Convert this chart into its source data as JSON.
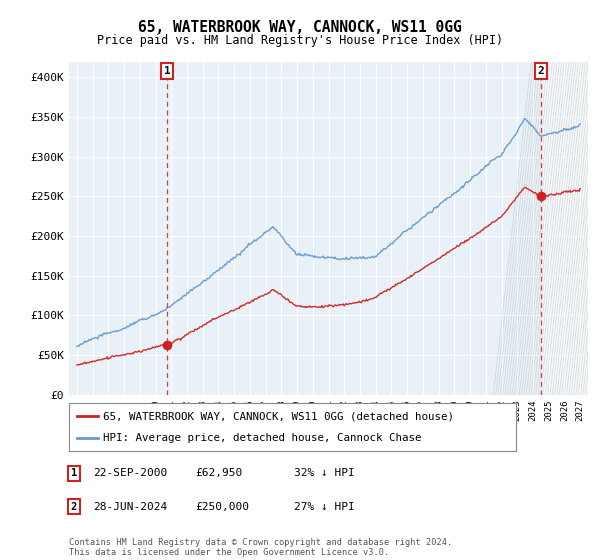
{
  "title": "65, WATERBROOK WAY, CANNOCK, WS11 0GG",
  "subtitle": "Price paid vs. HM Land Registry's House Price Index (HPI)",
  "ylim": [
    0,
    420000
  ],
  "yticks": [
    0,
    50000,
    100000,
    150000,
    200000,
    250000,
    300000,
    350000,
    400000
  ],
  "ytick_labels": [
    "£0",
    "£50K",
    "£100K",
    "£150K",
    "£200K",
    "£250K",
    "£300K",
    "£350K",
    "£400K"
  ],
  "background_color": "#ffffff",
  "plot_bg_color": "#e8f0f8",
  "grid_color": "#ffffff",
  "hpi_color": "#6699cc",
  "price_color": "#cc2222",
  "vline_color": "#cc2222",
  "sale1_date": 2000.73,
  "sale1_price": 62950,
  "sale1_label": "1",
  "sale2_date": 2024.49,
  "sale2_price": 250000,
  "sale2_label": "2",
  "legend_price_label": "65, WATERBROOK WAY, CANNOCK, WS11 0GG (detached house)",
  "legend_hpi_label": "HPI: Average price, detached house, Cannock Chase",
  "ann1_date": "22-SEP-2000",
  "ann1_price": "£62,950",
  "ann1_pct": "32% ↓ HPI",
  "ann2_date": "28-JUN-2024",
  "ann2_price": "£250,000",
  "ann2_pct": "27% ↓ HPI",
  "copyright": "Contains HM Land Registry data © Crown copyright and database right 2024.\nThis data is licensed under the Open Government Licence v3.0.",
  "hatch_start": 2024.49,
  "xlim_left": 1994.5,
  "xlim_right": 2027.5,
  "xstart": 1995,
  "xend": 2028
}
